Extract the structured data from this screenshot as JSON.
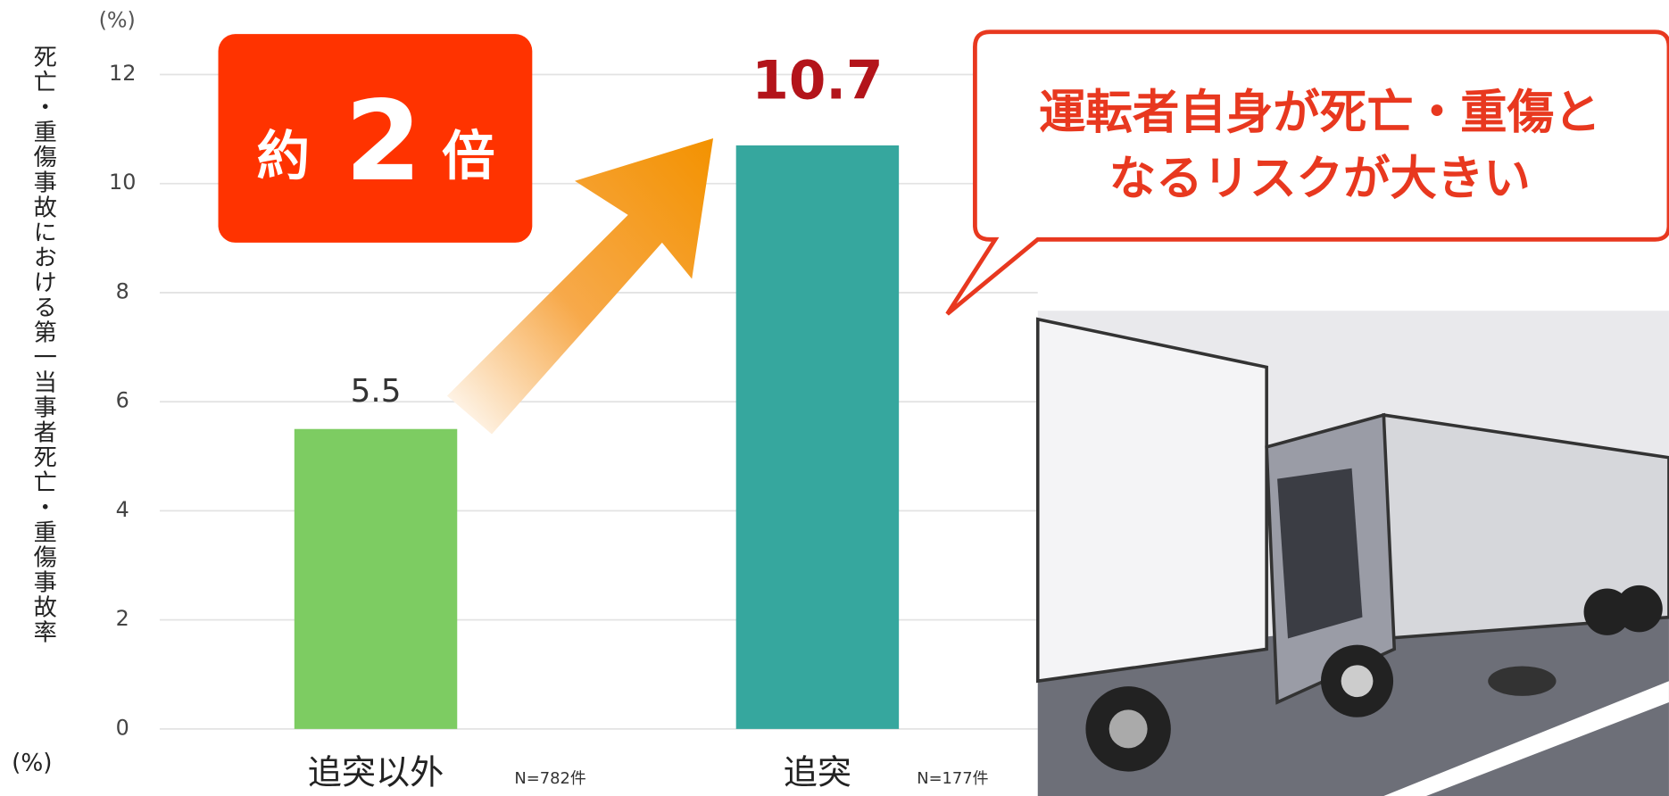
{
  "chart_data": {
    "type": "bar",
    "y_unit": "(%)",
    "y_label": "死亡・重傷事故における第一当事者死亡・重傷事故率",
    "y_label_unit": "(%)",
    "categories": [
      "追突以外",
      "追突"
    ],
    "category_notes": [
      "N=782件",
      "N=177件"
    ],
    "values": [
      5.5,
      10.7
    ],
    "colors": [
      "#7dcc62",
      "#36a79e"
    ],
    "ylim": [
      0,
      12
    ],
    "yticks": [
      0,
      2,
      4,
      6,
      8,
      10,
      12
    ],
    "grid": true,
    "badge": [
      "約",
      "2",
      "倍"
    ],
    "callout": [
      "運転者自身が死亡・重傷と",
      "なるリスクが大きい"
    ]
  }
}
